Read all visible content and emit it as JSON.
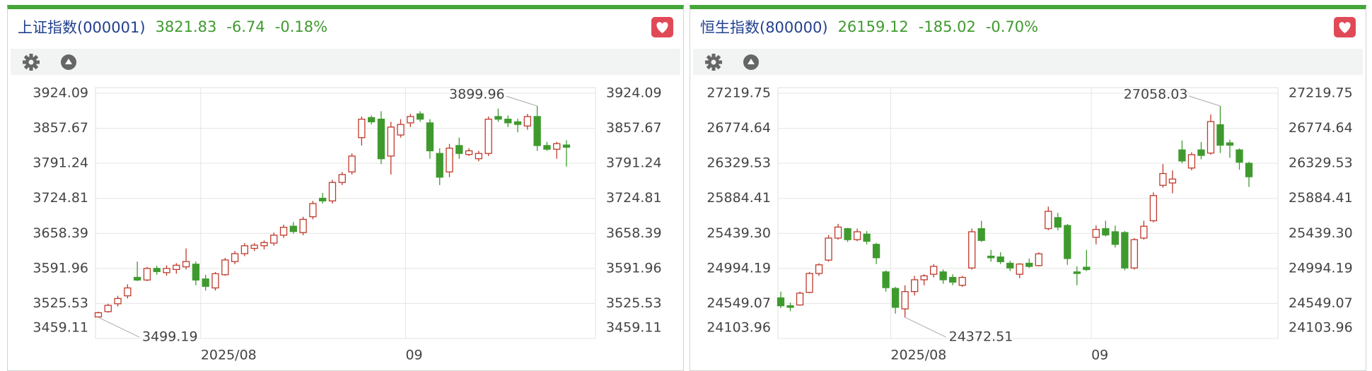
{
  "chart_data": [
    {
      "type": "candlestick",
      "title": "上证指数(000001)",
      "quote": {
        "price": "3821.83",
        "change": "-6.74",
        "change_pct": "-0.18%"
      },
      "categories": [
        null,
        null,
        null,
        null,
        null,
        null,
        null,
        null,
        null,
        null,
        null,
        "2025/08",
        null,
        null,
        null,
        null,
        null,
        null,
        null,
        null,
        null,
        null,
        null,
        null,
        null,
        null,
        null,
        null,
        null,
        null,
        null,
        null,
        "09",
        null,
        null,
        null,
        null,
        null,
        null,
        null,
        null,
        null,
        null,
        null,
        null,
        null,
        null,
        null,
        null
      ],
      "open": [
        3500,
        3510,
        3525,
        3540,
        3575,
        3570,
        3592,
        3584,
        3590,
        3595,
        3600,
        3572,
        3555,
        3580,
        3605,
        3620,
        3630,
        3635,
        3640,
        3655,
        3672,
        3660,
        3690,
        3725,
        3720,
        3755,
        3775,
        3840,
        3878,
        3875,
        3805,
        3845,
        3868,
        3885,
        3868,
        3810,
        3775,
        3825,
        3808,
        3800,
        3810,
        3880,
        3875,
        3870,
        3862,
        3880,
        3825,
        3818,
        3826
      ],
      "high": [
        3510,
        3525,
        3540,
        3562,
        3605,
        3595,
        3597,
        3598,
        3602,
        3630,
        3605,
        3580,
        3585,
        3612,
        3625,
        3640,
        3640,
        3645,
        3660,
        3675,
        3680,
        3690,
        3720,
        3735,
        3760,
        3775,
        3810,
        3880,
        3882,
        3890,
        3870,
        3875,
        3885,
        3890,
        3875,
        3820,
        3828,
        3840,
        3820,
        3815,
        3880,
        3895,
        3882,
        3876,
        3885,
        3899.96,
        3832,
        3832,
        3835
      ],
      "low": [
        3499.19,
        3508,
        3520,
        3535,
        3568,
        3568,
        3580,
        3578,
        3582,
        3590,
        3560,
        3550,
        3550,
        3578,
        3600,
        3615,
        3625,
        3628,
        3635,
        3650,
        3658,
        3655,
        3685,
        3715,
        3715,
        3750,
        3770,
        3825,
        3865,
        3790,
        3770,
        3840,
        3860,
        3870,
        3800,
        3750,
        3765,
        3800,
        3805,
        3795,
        3805,
        3870,
        3860,
        3850,
        3855,
        3815,
        3815,
        3800,
        3785
      ],
      "close": [
        3508,
        3522,
        3535,
        3555,
        3570,
        3592,
        3586,
        3592,
        3598,
        3605,
        3570,
        3558,
        3582,
        3608,
        3620,
        3635,
        3636,
        3641,
        3655,
        3670,
        3662,
        3685,
        3715,
        3720,
        3755,
        3770,
        3805,
        3875,
        3870,
        3800,
        3860,
        3865,
        3880,
        3875,
        3815,
        3765,
        3820,
        3810,
        3815,
        3810,
        3875,
        3875,
        3868,
        3865,
        3880,
        3825,
        3818,
        3828.57,
        3821.83
      ],
      "up_color": "#c0392b",
      "down_color": "#3f9a2e",
      "ylim": [
        3459.11,
        3924.09
      ],
      "yticks": [
        3459.11,
        3525.53,
        3591.96,
        3658.39,
        3724.81,
        3791.24,
        3857.67,
        3924.09
      ],
      "grid": true
    },
    {
      "type": "candlestick",
      "title": "恒生指数(800000)",
      "quote": {
        "price": "26159.12",
        "change": "-185.02",
        "change_pct": "-0.70%"
      },
      "categories": [
        null,
        null,
        null,
        null,
        null,
        null,
        null,
        null,
        null,
        null,
        null,
        null,
        "2025/08",
        null,
        null,
        null,
        null,
        null,
        null,
        null,
        null,
        null,
        null,
        null,
        null,
        null,
        null,
        null,
        null,
        null,
        null,
        null,
        null,
        "09",
        null,
        null,
        null,
        null,
        null,
        null,
        null,
        null,
        null,
        null,
        null,
        null,
        null,
        null,
        null,
        null
      ],
      "open": [
        24620,
        24520,
        24530,
        24690,
        24930,
        25100,
        25380,
        25500,
        25360,
        25430,
        25300,
        24950,
        24740,
        24480,
        24700,
        24850,
        24920,
        24950,
        24880,
        24780,
        25000,
        25500,
        25150,
        25140,
        25060,
        24920,
        25060,
        25030,
        25500,
        25640,
        25540,
        24950,
        25010,
        25390,
        25500,
        25460,
        25450,
        25000,
        25380,
        25600,
        26050,
        26080,
        26500,
        26270,
        26500,
        26460,
        26820,
        26590,
        26500,
        26330
      ],
      "high": [
        24700,
        24560,
        24700,
        24950,
        25060,
        25420,
        25560,
        25510,
        25500,
        25470,
        25320,
        24970,
        24760,
        24780,
        24900,
        24920,
        25050,
        24980,
        24920,
        24900,
        25500,
        25600,
        25230,
        25200,
        25090,
        25060,
        25120,
        25200,
        25780,
        25700,
        25560,
        25020,
        25230,
        25540,
        25600,
        25540,
        25470,
        25380,
        25600,
        25960,
        26320,
        26240,
        26620,
        26470,
        26600,
        26950,
        27058.03,
        26630,
        26520,
        26350
      ],
      "low": [
        24490,
        24450,
        24520,
        24680,
        24900,
        25080,
        25360,
        25330,
        25340,
        25300,
        25050,
        24700,
        24420,
        24372.51,
        24650,
        24780,
        24880,
        24800,
        24780,
        24760,
        24980,
        25330,
        25080,
        25050,
        24960,
        24870,
        25000,
        25020,
        25480,
        25480,
        25040,
        24780,
        24960,
        25300,
        25400,
        25260,
        24970,
        24980,
        25360,
        25580,
        26020,
        25950,
        26330,
        26240,
        26380,
        26440,
        26460,
        26400,
        26250,
        26030
      ],
      "close": [
        24520,
        24500,
        24680,
        24930,
        25040,
        25380,
        25520,
        25360,
        25460,
        25340,
        25130,
        24750,
        24500,
        24700,
        24850,
        24900,
        25020,
        24850,
        24820,
        24880,
        25460,
        25350,
        25130,
        25080,
        25000,
        25050,
        25020,
        25180,
        25720,
        25520,
        25120,
        24930,
        24980,
        25490,
        25420,
        25300,
        25000,
        25360,
        25530,
        25920,
        26200,
        26130,
        26360,
        26440,
        26430,
        26860,
        26560,
        26560,
        26344.14,
        26159.12
      ],
      "up_color": "#c0392b",
      "down_color": "#3f9a2e",
      "ylim": [
        24103.96,
        27219.75
      ],
      "yticks": [
        24103.96,
        24549.07,
        24994.19,
        {
          "value": 25439.3,
          "label": "25439.30"
        },
        25884.41,
        26329.53,
        26774.64,
        27219.75
      ],
      "grid": true
    }
  ]
}
